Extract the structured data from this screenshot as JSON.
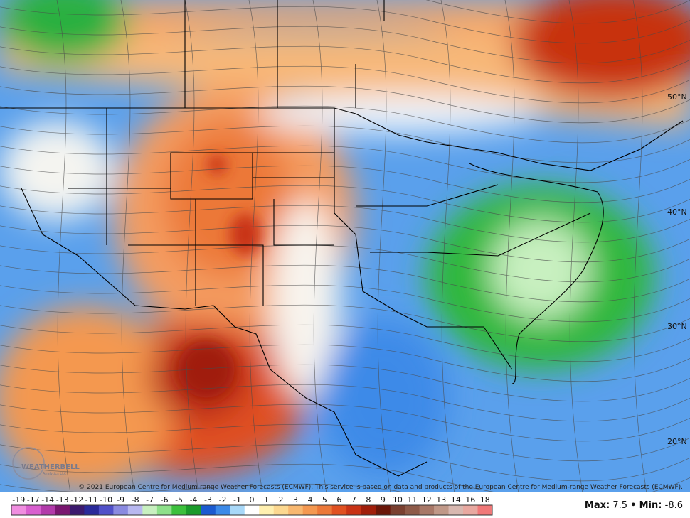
{
  "map": {
    "latitude_labels": [
      "50°N",
      "40°N",
      "30°N",
      "20°N"
    ],
    "copyright": "© 2021 European Centre for Medium-range Weather Forecasts (ECMWF). This service is based on data and products of the European Centre for Medium-range Weather Forecasts (ECMWF).",
    "logo": "WEATHERBELL",
    "logo_sub": "Analytics LLC"
  },
  "colorbar": {
    "ticks": [
      -19,
      -17,
      -14,
      -13,
      -12,
      -11,
      -10,
      -9,
      -8,
      -7,
      -6,
      -5,
      -4,
      -3,
      -2,
      -1,
      0,
      1,
      2,
      3,
      4,
      5,
      6,
      7,
      8,
      9,
      10,
      11,
      12,
      13,
      14,
      16,
      18
    ],
    "colors": [
      "#f08ee0",
      "#d95fcf",
      "#b23aaa",
      "#7a1670",
      "#3c1a6e",
      "#2a2a9a",
      "#5050c8",
      "#8a8ae0",
      "#b8b8f0",
      "#c8f0c0",
      "#8ee08a",
      "#3cc03c",
      "#1a9a2a",
      "#1a5ad0",
      "#3c8ae8",
      "#a8d8f8",
      "#ffffff",
      "#fff0b0",
      "#fcd890",
      "#f8b870",
      "#f49850",
      "#ec7838",
      "#e05020",
      "#c83214",
      "#a01e0a",
      "#6a1608",
      "#7a4030",
      "#8e5a48",
      "#a87868",
      "#c09888",
      "#d8b8b0",
      "#e8a8a0",
      "#f07878"
    ]
  },
  "stats": {
    "max_label": "Max:",
    "max_value": 7.5,
    "separator": "•",
    "min_label": "Min:",
    "min_value": -8.6
  }
}
